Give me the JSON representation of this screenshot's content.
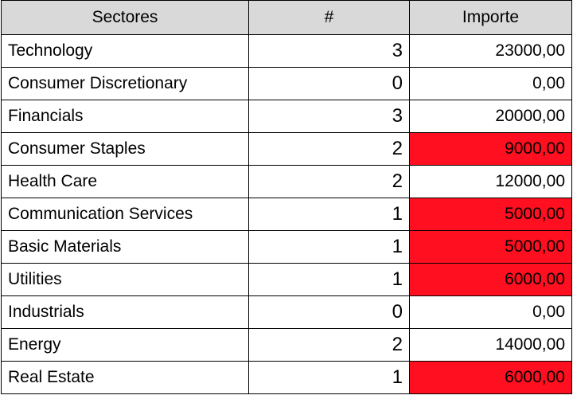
{
  "table": {
    "headers": [
      "Sectores",
      "#",
      "Importe"
    ],
    "highlight_color": "#ff0f1f",
    "header_background": "#d9d9d9",
    "rows": [
      {
        "sector": "Technology",
        "count": "3",
        "amount": "23000,00",
        "flagged": false
      },
      {
        "sector": "Consumer Discretionary",
        "count": "0",
        "amount": "0,00",
        "flagged": false
      },
      {
        "sector": "Financials",
        "count": "3",
        "amount": "20000,00",
        "flagged": false
      },
      {
        "sector": "Consumer Staples",
        "count": "2",
        "amount": "9000,00",
        "flagged": true
      },
      {
        "sector": "Health Care",
        "count": "2",
        "amount": "12000,00",
        "flagged": false
      },
      {
        "sector": "Communication Services",
        "count": "1",
        "amount": "5000,00",
        "flagged": true
      },
      {
        "sector": "Basic Materials",
        "count": "1",
        "amount": "5000,00",
        "flagged": true
      },
      {
        "sector": "Utilities",
        "count": "1",
        "amount": "6000,00",
        "flagged": true
      },
      {
        "sector": "Industrials",
        "count": "0",
        "amount": "0,00",
        "flagged": false
      },
      {
        "sector": "Energy",
        "count": "2",
        "amount": "14000,00",
        "flagged": false
      },
      {
        "sector": "Real Estate",
        "count": "1",
        "amount": "6000,00",
        "flagged": true
      }
    ]
  }
}
